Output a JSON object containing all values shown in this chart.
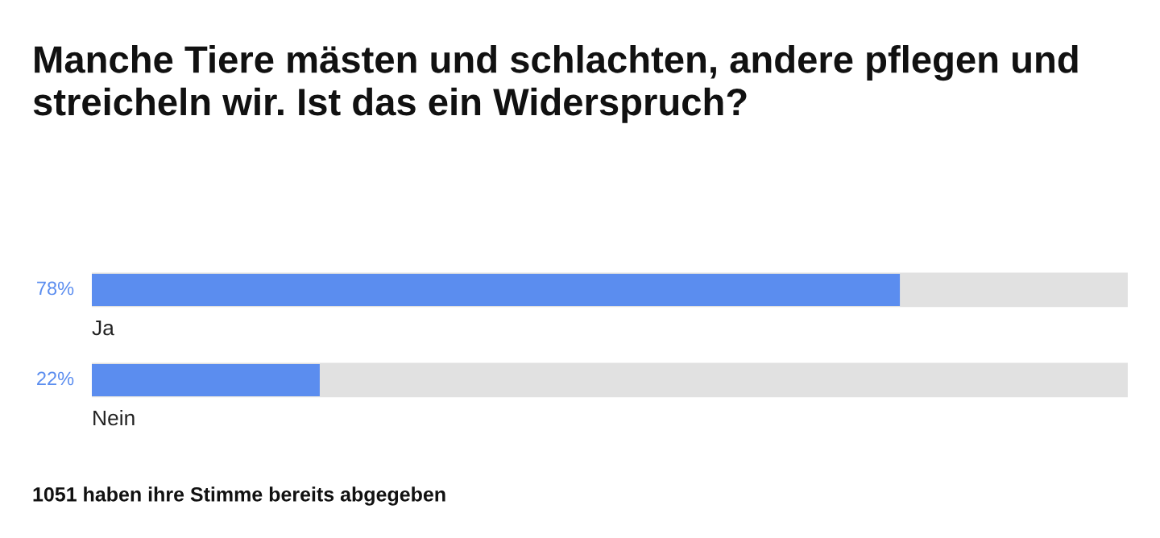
{
  "chart_data": {
    "type": "bar",
    "orientation": "horizontal",
    "title": "Manche Tiere mästen und schlachten, andere pflegen und streicheln wir. Ist das ein Widerspruch?",
    "categories": [
      "Ja",
      "Nein"
    ],
    "series": [
      {
        "color": "#5b8def",
        "values": [
          78,
          22
        ],
        "value_labels": [
          "78%",
          "22%"
        ]
      }
    ],
    "xlim": [
      0,
      100
    ],
    "tick_labels": false,
    "grid": false,
    "annotations": [
      "1051 haben ihre Stimme bereits abgegeben"
    ]
  }
}
